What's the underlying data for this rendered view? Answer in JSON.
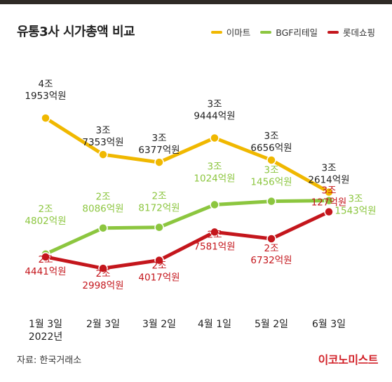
{
  "title": "유통3사 시가총액 비교",
  "source": "자료: 한국거래소",
  "brand": "이코노미스트",
  "chart_data": {
    "type": "line",
    "title": "유통3사 시가총액 비교",
    "units": "억원",
    "categories": [
      "1월 3일",
      "2월 3일",
      "3월 2일",
      "4월 1일",
      "5월 2일",
      "6월 3일"
    ],
    "category_year": "2022년",
    "legend_position": "top-right",
    "grid": false,
    "series": [
      {
        "name": "이마트",
        "color": "#f0b800",
        "values": [
          41953,
          37353,
          36377,
          39444,
          36656,
          32614
        ],
        "labels": [
          [
            "4조",
            "1953억원"
          ],
          [
            "3조",
            "7353억원"
          ],
          [
            "3조",
            "6377억원"
          ],
          [
            "3조",
            "9444억원"
          ],
          [
            "3조",
            "6656억원"
          ],
          [
            "3조",
            "2614억원"
          ]
        ]
      },
      {
        "name": "BGF리테일",
        "color": "#8cc63f",
        "values": [
          24802,
          28086,
          28172,
          31024,
          31456,
          31543
        ],
        "labels": [
          [
            "2조",
            "4802억원"
          ],
          [
            "2조",
            "8086억원"
          ],
          [
            "2조",
            "8172억원"
          ],
          [
            "3조",
            "1024억원"
          ],
          [
            "3조",
            "1456억원"
          ],
          [
            "3조",
            "1543억원"
          ]
        ]
      },
      {
        "name": "롯데쇼핑",
        "color": "#c4161c",
        "values": [
          24441,
          22998,
          24017,
          27581,
          26732,
          30127
        ],
        "labels": [
          [
            "2조",
            "4441억원"
          ],
          [
            "2조",
            "2998억원"
          ],
          [
            "2조",
            "4017억원"
          ],
          [
            "2조",
            "7581억원"
          ],
          [
            "2조",
            "6732억원"
          ],
          [
            "3조",
            "127억원"
          ]
        ]
      }
    ]
  }
}
